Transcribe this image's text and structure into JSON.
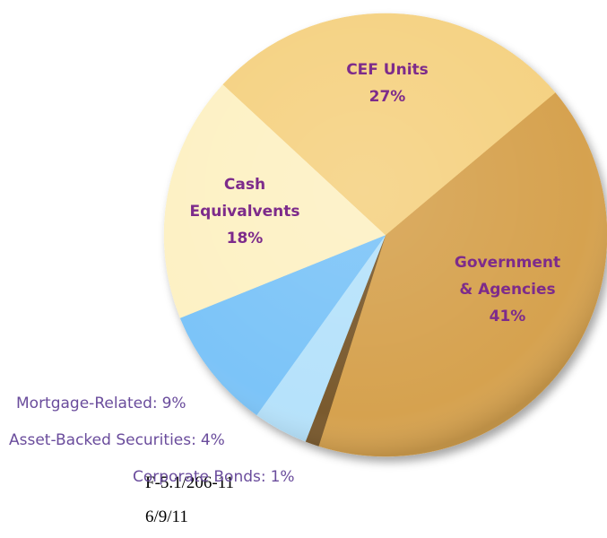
{
  "chart_data": {
    "type": "pie",
    "categories": [
      "Government\n& Agencies",
      "Corporate Bonds:",
      "Asset-Backed Securities:",
      "Mortgage-Related:",
      "Cash\nEquivalvents",
      "CEF Units"
    ],
    "values": [
      41,
      1,
      4,
      9,
      18,
      27
    ],
    "value_labels": [
      "41%",
      "1%",
      "4%",
      "9%",
      "18%",
      "27%"
    ],
    "colors": [
      "#d6a24f",
      "#7a5a2e",
      "#b6e2fb",
      "#7cc4f8",
      "#fdf1c4",
      "#f5d283"
    ]
  },
  "footer": [
    "F-5.1/206-11",
    "6/9/11"
  ]
}
